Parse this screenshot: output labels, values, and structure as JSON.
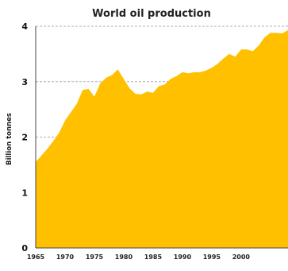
{
  "chart_data": {
    "type": "area",
    "title": "World oil production",
    "xlabel": "",
    "ylabel": "Billion tonnes",
    "xlim": [
      1965,
      2008
    ],
    "ylim": [
      0,
      4
    ],
    "x_ticks": [
      "1965",
      "1970",
      "1975",
      "1980",
      "1985",
      "1990",
      "1995",
      "2000"
    ],
    "y_ticks": [
      "0",
      "1",
      "2",
      "3",
      "4"
    ],
    "grid": true,
    "colors": {
      "fill": "#ffc000",
      "grid": "#b0b0b0",
      "axis": "#444444"
    },
    "series": [
      {
        "x": [
          1965,
          1966,
          1967,
          1968,
          1969,
          1970,
          1971,
          1972,
          1973,
          1974,
          1975,
          1976,
          1977,
          1978,
          1979,
          1980,
          1981,
          1982,
          1983,
          1984,
          1985,
          1986,
          1987,
          1988,
          1989,
          1990,
          1991,
          1992,
          1993,
          1994,
          1995,
          1996,
          1997,
          1998,
          1999,
          2000,
          2001,
          2002,
          2003,
          2004,
          2005,
          2006,
          2007,
          2008
        ],
        "values": [
          1.55,
          1.67,
          1.79,
          1.93,
          2.08,
          2.3,
          2.45,
          2.6,
          2.85,
          2.87,
          2.73,
          2.97,
          3.07,
          3.12,
          3.22,
          3.05,
          2.88,
          2.78,
          2.77,
          2.82,
          2.8,
          2.92,
          2.95,
          3.05,
          3.1,
          3.17,
          3.15,
          3.17,
          3.17,
          3.2,
          3.25,
          3.32,
          3.42,
          3.5,
          3.45,
          3.58,
          3.58,
          3.55,
          3.65,
          3.8,
          3.88,
          3.88,
          3.87,
          3.93
        ]
      }
    ]
  }
}
